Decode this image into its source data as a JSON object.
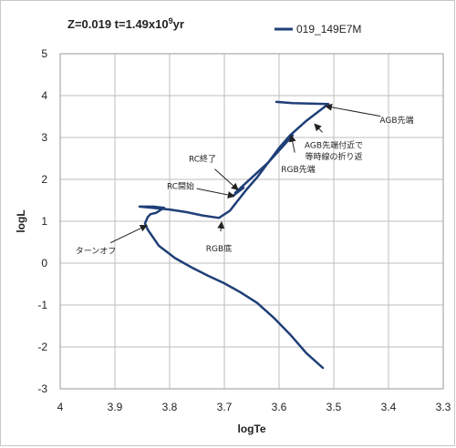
{
  "chart_data": {
    "type": "line",
    "title": {
      "prefix": "Z=0.019  t=1.49x10",
      "exponent": "9",
      "suffix": "yr"
    },
    "xlabel": "logTe",
    "ylabel": "logL",
    "xlim": [
      4.0,
      3.3
    ],
    "ylim": [
      -3,
      5
    ],
    "x_reversed": true,
    "xticks": [
      {
        "value": 4.0,
        "label": "4"
      },
      {
        "value": 3.9,
        "label": "3.9"
      },
      {
        "value": 3.8,
        "label": "3.8"
      },
      {
        "value": 3.7,
        "label": "3.7"
      },
      {
        "value": 3.6,
        "label": "3.6"
      },
      {
        "value": 3.5,
        "label": "3.5"
      },
      {
        "value": 3.4,
        "label": "3.4"
      },
      {
        "value": 3.3,
        "label": "3.3"
      }
    ],
    "yticks": [
      {
        "value": 5,
        "label": "5"
      },
      {
        "value": 4,
        "label": "4"
      },
      {
        "value": 3,
        "label": "3"
      },
      {
        "value": 2,
        "label": "2"
      },
      {
        "value": 1,
        "label": "1"
      },
      {
        "value": 0,
        "label": "0"
      },
      {
        "value": -1,
        "label": "-1"
      },
      {
        "value": -2,
        "label": "-2"
      },
      {
        "value": -3,
        "label": "-3"
      }
    ],
    "grid": true,
    "legend_position": "top-right",
    "series": [
      {
        "name": "019_149E7M",
        "color": "#1f3f77",
        "points": [
          [
            3.52,
            -2.5
          ],
          [
            3.55,
            -2.15
          ],
          [
            3.58,
            -1.7
          ],
          [
            3.61,
            -1.3
          ],
          [
            3.64,
            -0.95
          ],
          [
            3.67,
            -0.7
          ],
          [
            3.7,
            -0.48
          ],
          [
            3.73,
            -0.3
          ],
          [
            3.76,
            -0.1
          ],
          [
            3.79,
            0.12
          ],
          [
            3.82,
            0.42
          ],
          [
            3.84,
            0.8
          ],
          [
            3.845,
            0.95
          ],
          [
            3.84,
            1.1
          ],
          [
            3.835,
            1.17
          ],
          [
            3.825,
            1.2
          ],
          [
            3.815,
            1.28
          ],
          [
            3.81,
            1.32
          ],
          [
            3.83,
            1.35
          ],
          [
            3.855,
            1.35
          ],
          [
            3.84,
            1.33
          ],
          [
            3.8,
            1.28
          ],
          [
            3.77,
            1.22
          ],
          [
            3.74,
            1.14
          ],
          [
            3.71,
            1.08
          ],
          [
            3.69,
            1.25
          ],
          [
            3.675,
            1.5
          ],
          [
            3.66,
            1.75
          ],
          [
            3.64,
            2.05
          ],
          [
            3.62,
            2.4
          ],
          [
            3.6,
            2.75
          ],
          [
            3.58,
            3.05
          ],
          [
            3.55,
            3.4
          ],
          [
            3.51,
            3.8
          ],
          [
            3.575,
            3.82
          ],
          [
            3.605,
            3.85
          ]
        ]
      }
    ],
    "overlay_segments": [
      {
        "points": [
          [
            3.68,
            1.68
          ],
          [
            3.62,
            2.4
          ],
          [
            3.575,
            3.05
          ]
        ]
      },
      {
        "points": [
          [
            3.685,
            1.6
          ],
          [
            3.665,
            1.8
          ]
        ]
      }
    ],
    "annotations": [
      {
        "text": "AGB先端",
        "text_at": [
          3.385,
          3.35
        ],
        "arrow_to": [
          3.515,
          3.75
        ]
      },
      {
        "text": "AGB先端付近で",
        "text_at": [
          3.5,
          2.75
        ],
        "arrow_to": [
          3.535,
          3.32
        ]
      },
      {
        "text": "等時線の折り返",
        "text_at": [
          3.5,
          2.48
        ],
        "arrow_to": null
      },
      {
        "text": "RGB先端",
        "text_at": [
          3.565,
          2.17
        ],
        "arrow_to": [
          3.578,
          3.05
        ]
      },
      {
        "text": "RC終了",
        "text_at": [
          3.74,
          2.42
        ],
        "arrow_to": [
          3.675,
          1.75
        ]
      },
      {
        "text": "RC開始",
        "text_at": [
          3.78,
          1.77
        ],
        "arrow_to": [
          3.682,
          1.6
        ]
      },
      {
        "text": "RGB底",
        "text_at": [
          3.71,
          0.28
        ],
        "arrow_to": [
          3.705,
          0.98
        ]
      },
      {
        "text": "ターンオフ",
        "text_at": [
          3.935,
          0.23
        ],
        "arrow_to": [
          3.842,
          0.9
        ]
      }
    ]
  }
}
